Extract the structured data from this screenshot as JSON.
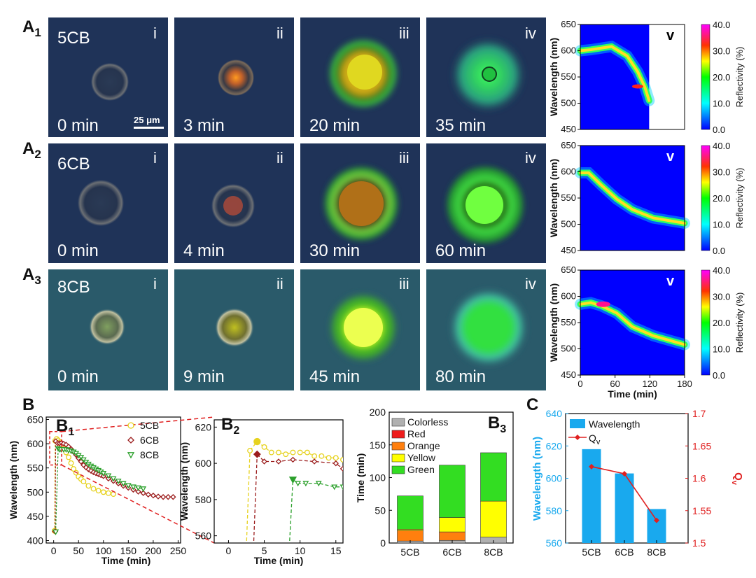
{
  "panels": {
    "A1": {
      "letter": "A",
      "num": "1",
      "material": "5CB",
      "roman": [
        "i",
        "ii",
        "iii",
        "iv",
        "v"
      ],
      "times": [
        "0 min",
        "3 min",
        "20 min",
        "35 min"
      ]
    },
    "A2": {
      "letter": "A",
      "num": "2",
      "material": "6CB",
      "roman": [
        "i",
        "ii",
        "iii",
        "iv",
        "v"
      ],
      "times": [
        "0 min",
        "4 min",
        "30 min",
        "60 min"
      ]
    },
    "A3": {
      "letter": "A",
      "num": "3",
      "material": "8CB",
      "roman": [
        "i",
        "ii",
        "iii",
        "iv",
        "v"
      ],
      "times": [
        "0 min",
        "9 min",
        "45 min",
        "80 min"
      ]
    },
    "scale_bar": "25 μm",
    "heatmap": {
      "ylabel": "Wavelength (nm)",
      "xlabel": "Time (min)",
      "yticks": [
        "650",
        "600",
        "550",
        "500",
        "450"
      ],
      "xticks": [
        "0",
        "60",
        "120",
        "180"
      ],
      "colorbar_label": "Reflectivity (%)",
      "colorbar_ticks": [
        "40.0",
        "30.0",
        "20.0",
        "10.0",
        "0.0"
      ],
      "colors": {
        "low": "#0000ff",
        "mid": "#00ff00",
        "high": "#ff0000",
        "max": "#ff00ff"
      }
    },
    "B": {
      "label": "B",
      "b1": "B",
      "b1num": "1",
      "b2": "B",
      "b2num": "2",
      "b3": "B",
      "b3num": "3"
    },
    "C": {
      "label": "C"
    }
  },
  "chart_data": [
    {
      "type": "line",
      "title": "B1",
      "xlabel": "Time (min)",
      "ylabel": "Wavelength (nm)",
      "xlim": [
        -15,
        255
      ],
      "ylim": [
        395,
        655
      ],
      "xticks": [
        "0",
        "50",
        "100",
        "150",
        "200",
        "250"
      ],
      "yticks": [
        "400",
        "450",
        "500",
        "550",
        "600",
        "650"
      ],
      "series": [
        {
          "name": "5CB",
          "color": "#e6d21e",
          "marker": "circle",
          "x": [
            3,
            6,
            9,
            12,
            15,
            20,
            25,
            30,
            35,
            40,
            45,
            50,
            55,
            60,
            70,
            80,
            90,
            100,
            110,
            120
          ],
          "y": [
            606,
            610,
            607,
            603,
            598,
            590,
            582,
            572,
            560,
            548,
            540,
            532,
            527,
            522,
            513,
            507,
            503,
            500,
            498,
            496
          ]
        },
        {
          "name": "6CB",
          "color": "#9b1c1c",
          "marker": "diamond",
          "x": [
            4,
            8,
            12,
            16,
            20,
            25,
            30,
            35,
            40,
            45,
            50,
            55,
            60,
            65,
            70,
            75,
            80,
            85,
            90,
            95,
            100,
            110,
            120,
            130,
            140,
            150,
            160,
            170,
            180,
            190,
            200,
            210,
            220,
            230,
            240
          ],
          "y": [
            605,
            601,
            601,
            602,
            600,
            598,
            594,
            589,
            583,
            577,
            570,
            563,
            556,
            551,
            547,
            544,
            541,
            539,
            537,
            535,
            533,
            528,
            523,
            518,
            513,
            509,
            505,
            501,
            498,
            495,
            493,
            491,
            490,
            490,
            490
          ]
        },
        {
          "name": "8CB",
          "color": "#2ca02c",
          "marker": "triangle-down",
          "x": [
            9,
            12,
            15,
            20,
            25,
            30,
            35,
            40,
            45,
            50,
            55,
            60,
            65,
            70,
            75,
            80,
            85,
            90,
            95,
            100,
            110,
            120,
            130,
            140,
            150,
            160,
            170,
            180
          ],
          "y": [
            590,
            588,
            588,
            588,
            588,
            586,
            585,
            583,
            580,
            576,
            572,
            567,
            562,
            558,
            554,
            551,
            548,
            545,
            542,
            539,
            534,
            528,
            523,
            518,
            514,
            511,
            509,
            507
          ]
        }
      ],
      "initial_points": {
        "x": [
          2,
          3,
          4
        ],
        "y": [
          420,
          419,
          418
        ]
      }
    },
    {
      "type": "line",
      "title": "B2",
      "xlabel": "Time (min)",
      "ylabel": "Wavelength (nm)",
      "xlim": [
        -2,
        16
      ],
      "ylim": [
        556,
        624
      ],
      "xticks": [
        "0",
        "5",
        "10",
        "15"
      ],
      "yticks": [
        "560",
        "580",
        "600",
        "620"
      ],
      "series": [
        {
          "name": "5CB",
          "color": "#e6d21e",
          "x": [
            3,
            4,
            5,
            6,
            7,
            8,
            9,
            10,
            11,
            12,
            13,
            14,
            15,
            16
          ],
          "y": [
            607,
            612,
            609,
            606,
            606,
            605,
            606,
            606,
            606,
            604,
            604,
            603,
            603,
            602
          ]
        },
        {
          "name": "6CB",
          "color": "#9b1c1c",
          "x": [
            4,
            5,
            7,
            9,
            12,
            15,
            16
          ],
          "y": [
            605,
            601,
            601,
            602,
            601,
            600,
            597
          ]
        },
        {
          "name": "8CB",
          "color": "#2ca02c",
          "x": [
            9,
            9.7,
            10.8,
            12.6,
            14.8,
            16
          ],
          "y": [
            591,
            589,
            589,
            589,
            587,
            587
          ]
        }
      ],
      "drop_lines_x": {
        "5CB": 2.5,
        "6CB": 3.5,
        "8CB": 8.5
      }
    },
    {
      "type": "bar",
      "title": "B3",
      "ylabel": "Time (min)",
      "categories": [
        "5CB",
        "6CB",
        "8CB"
      ],
      "ylim": [
        0,
        200
      ],
      "yticks": [
        "0",
        "50",
        "100",
        "150",
        "200"
      ],
      "stacked": true,
      "series": [
        {
          "name": "Colorless",
          "color": "#b0b0b0",
          "values": [
            3,
            4,
            9
          ]
        },
        {
          "name": "Red",
          "color": "#ee1c1c",
          "values": [
            0,
            0,
            0
          ]
        },
        {
          "name": "Orange",
          "color": "#ff7f0e",
          "values": [
            16,
            13,
            0
          ]
        },
        {
          "name": "Yellow",
          "color": "#ffff00",
          "values": [
            2,
            22,
            55
          ]
        },
        {
          "name": "Green",
          "color": "#33dd22",
          "values": [
            51,
            80,
            74
          ]
        }
      ]
    },
    {
      "type": "bar",
      "title": "C",
      "categories": [
        "5CB",
        "6CB",
        "8CB"
      ],
      "ylabel": "Wavelength (nm)",
      "ylim": [
        560,
        640
      ],
      "yticks": [
        "560",
        "580",
        "600",
        "620",
        "640"
      ],
      "bar_name": "Wavelength",
      "bar_color": "#19a9ee",
      "values": [
        618,
        603,
        581
      ],
      "y2label": "Q",
      "y2sub": "v",
      "y2lim": [
        1.5,
        1.7
      ],
      "y2ticks": [
        "1.5",
        "1.55",
        "1.6",
        "1.65",
        "1.7"
      ],
      "line_name": "Q",
      "line_sub": "v",
      "line_color": "#e02020",
      "line_values": [
        1.618,
        1.607,
        1.535
      ]
    }
  ]
}
